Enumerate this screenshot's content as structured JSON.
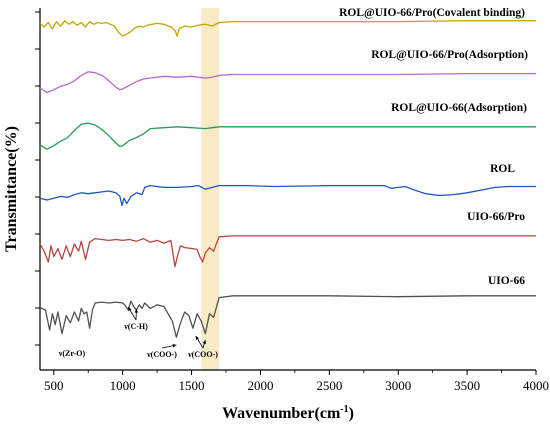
{
  "chart_data": {
    "type": "line",
    "title": "",
    "xlabel": "Wavenumber(cm",
    "xlabel_sup": "-1",
    "xlabel_tail": ")",
    "ylabel": "Transmittance(%)",
    "xlim": [
      400,
      4000
    ],
    "x_ticks": [
      "500",
      "1000",
      "1500",
      "2000",
      "2500",
      "3000",
      "3500",
      "4000"
    ],
    "y_ticks_labeled": false,
    "grid": false,
    "highlight_band": {
      "x": [
        1570,
        1700
      ],
      "color": "#f5e6b8"
    },
    "series": [
      {
        "name": "ROL@UIO-66/Pro(Covalent binding)",
        "color": "#c8a400",
        "x": [
          400,
          430,
          460,
          490,
          520,
          550,
          580,
          610,
          640,
          670,
          700,
          730,
          760,
          790,
          820,
          850,
          880,
          910,
          940,
          970,
          1000,
          1030,
          1060,
          1090,
          1120,
          1150,
          1180,
          1210,
          1250,
          1300,
          1350,
          1380,
          1395,
          1410,
          1450,
          1500,
          1550,
          1600,
          1650,
          1700,
          1800,
          2000,
          2500,
          3000,
          3500,
          4000
        ],
        "y": [
          94,
          90,
          95,
          88,
          96,
          91,
          97,
          93,
          96,
          92,
          95,
          90,
          96,
          93,
          95,
          94,
          95,
          93,
          91,
          84,
          80,
          82,
          85,
          89,
          91,
          90,
          92,
          93,
          94,
          93,
          90,
          86,
          80,
          88,
          91,
          90,
          92,
          93,
          91,
          95,
          96,
          96,
          96,
          96,
          97,
          97
        ]
      },
      {
        "name": "ROL@UIO-66/Pro(Adsorption)",
        "color": "#b36ad1",
        "x": [
          400,
          450,
          500,
          550,
          600,
          650,
          700,
          750,
          800,
          850,
          900,
          950,
          980,
          1000,
          1050,
          1100,
          1150,
          1200,
          1300,
          1400,
          1500,
          1600,
          1650,
          1700,
          1800,
          2000,
          2500,
          3000,
          3500,
          4000
        ],
        "y": [
          60,
          55,
          58,
          62,
          64,
          68,
          74,
          78,
          77,
          74,
          68,
          61,
          58,
          59,
          63,
          67,
          70,
          71,
          73,
          72,
          73,
          71,
          72,
          74,
          75,
          75,
          75,
          75,
          76,
          76
        ]
      },
      {
        "name": "ROL@UIO-66(Adsorption)",
        "color": "#2a9a5a",
        "x": [
          400,
          450,
          500,
          550,
          600,
          650,
          700,
          750,
          800,
          850,
          900,
          950,
          980,
          1000,
          1050,
          1100,
          1150,
          1200,
          1300,
          1400,
          1500,
          1600,
          1650,
          1700,
          1800,
          2000,
          2500,
          3000,
          3500,
          4000
        ],
        "y": [
          28,
          23,
          27,
          32,
          36,
          44,
          51,
          52,
          50,
          45,
          38,
          30,
          26,
          27,
          33,
          36,
          40,
          46,
          47,
          48,
          47,
          46,
          47,
          48,
          48,
          48,
          48,
          48,
          48,
          48
        ]
      },
      {
        "name": "ROL",
        "color": "#1f55c8",
        "x": [
          400,
          450,
          500,
          550,
          600,
          650,
          700,
          750,
          800,
          850,
          900,
          950,
          980,
          995,
          1010,
          1030,
          1060,
          1100,
          1140,
          1160,
          1200,
          1300,
          1400,
          1500,
          1550,
          1600,
          1650,
          1700,
          1900,
          2100,
          2500,
          2900,
          2950,
          3000,
          3050,
          3100,
          3200,
          3300,
          3400,
          3500,
          3600,
          3700,
          3800,
          4000
        ],
        "y": [
          12,
          10,
          12,
          14,
          13,
          16,
          18,
          17,
          18,
          19,
          20,
          18,
          14,
          4,
          12,
          6,
          14,
          18,
          16,
          24,
          26,
          24,
          24,
          25,
          26,
          22,
          24,
          26,
          26,
          25,
          26,
          26,
          23,
          24,
          25,
          22,
          17,
          15,
          16,
          18,
          21,
          24,
          25,
          25
        ]
      },
      {
        "name": "UIO-66/Pro",
        "color": "#b5473f",
        "x": [
          400,
          430,
          460,
          480,
          500,
          530,
          560,
          590,
          620,
          650,
          680,
          700,
          730,
          760,
          800,
          850,
          900,
          950,
          1000,
          1050,
          1100,
          1150,
          1200,
          1250,
          1300,
          1350,
          1380,
          1400,
          1420,
          1450,
          1500,
          1540,
          1560,
          1580,
          1600,
          1630,
          1660,
          1700,
          1800,
          2000,
          2500,
          3000,
          3500,
          4000
        ],
        "y": [
          -10,
          -18,
          -30,
          -12,
          -24,
          -15,
          -27,
          -12,
          -24,
          -10,
          -18,
          -7,
          -27,
          -8,
          -4,
          -5,
          -6,
          -5,
          -6,
          -5,
          -7,
          -4,
          -8,
          -6,
          -9,
          -6,
          -35,
          -22,
          -12,
          -14,
          -15,
          -16,
          -24,
          -30,
          -20,
          -14,
          -18,
          -2,
          -1,
          -1,
          -1,
          -1,
          -1,
          -1
        ]
      },
      {
        "name": "UIO-66",
        "color": "#505050",
        "x": [
          400,
          440,
          470,
          490,
          510,
          530,
          560,
          590,
          620,
          650,
          680,
          700,
          720,
          740,
          760,
          780,
          800,
          850,
          900,
          950,
          1000,
          1020,
          1040,
          1060,
          1080,
          1100,
          1120,
          1140,
          1160,
          1200,
          1250,
          1300,
          1330,
          1360,
          1390,
          1420,
          1450,
          1480,
          1510,
          1540,
          1570,
          1600,
          1630,
          1660,
          1700,
          1800,
          2000,
          2500,
          3000,
          3500,
          4000
        ],
        "y": [
          -55,
          -58,
          -80,
          -62,
          -74,
          -60,
          -84,
          -64,
          -72,
          -60,
          -70,
          -56,
          -62,
          -60,
          -78,
          -58,
          -50,
          -49,
          -50,
          -49,
          -50,
          -53,
          -58,
          -48,
          -54,
          -58,
          -52,
          -56,
          -50,
          -56,
          -52,
          -54,
          -62,
          -70,
          -88,
          -72,
          -60,
          -64,
          -78,
          -62,
          -70,
          -84,
          -62,
          -66,
          -44,
          -42,
          -42,
          -42,
          -43,
          -42,
          -42
        ]
      }
    ],
    "annotations": [
      {
        "text": "ν(Zr-O)",
        "x": 500
      },
      {
        "text": "ν(C-H)",
        "x": 1080
      },
      {
        "text": "ν(COO-)",
        "x": 1400
      },
      {
        "text": "ν(COO-)",
        "x": 1590
      }
    ]
  }
}
